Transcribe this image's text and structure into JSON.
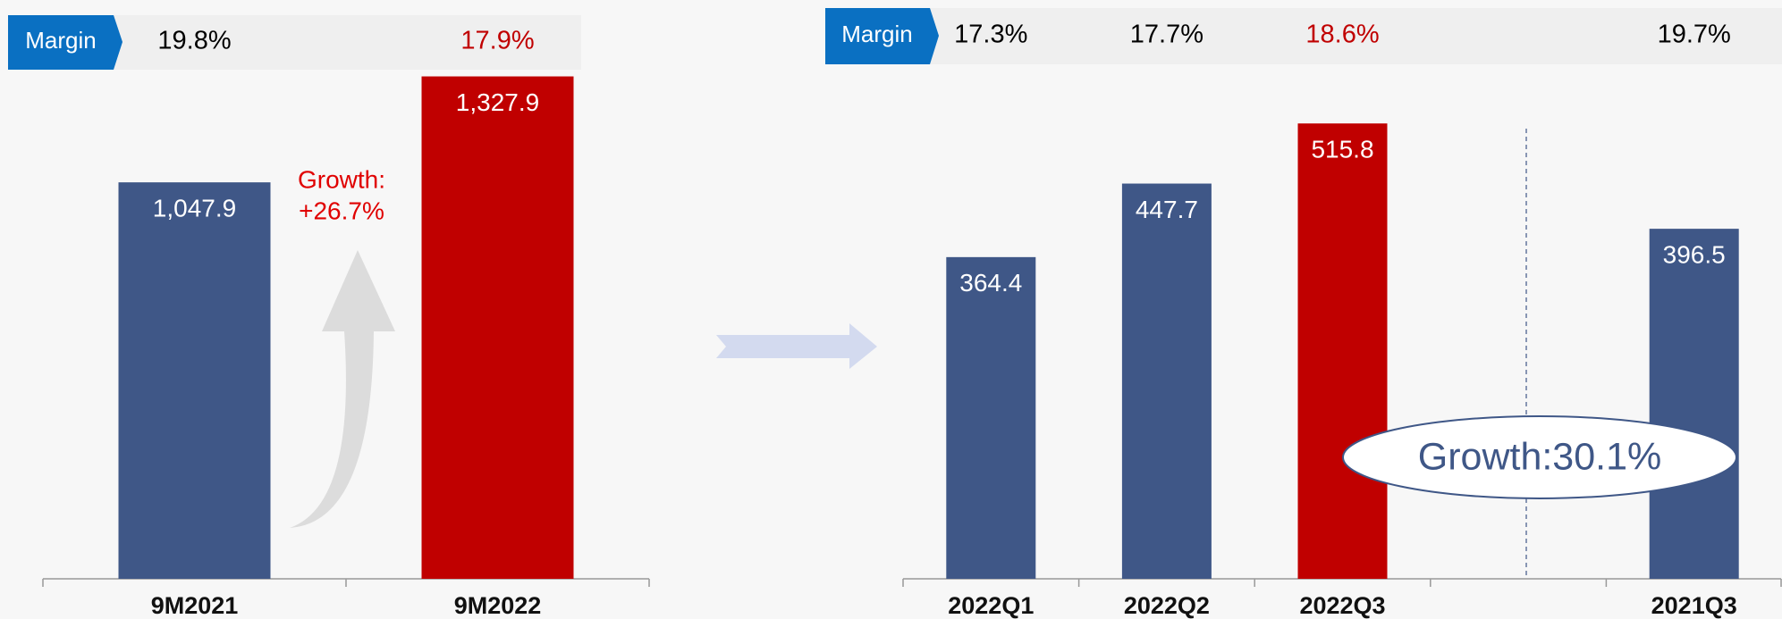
{
  "chart_data": [
    {
      "type": "bar",
      "margin_title": "Margin",
      "categories": [
        "9M2021",
        "9M2022"
      ],
      "values": [
        1047.9,
        1327.9
      ],
      "value_labels": [
        "1,047.9",
        "1,327.9"
      ],
      "colors": [
        "#3f5787",
        "#c00000"
      ],
      "margins": [
        "19.8%",
        "17.9%"
      ],
      "margin_colors": [
        "#000000",
        "#c00000"
      ],
      "annotation": [
        "Growth:",
        "+26.7%"
      ],
      "ylim": [
        0,
        1400
      ]
    },
    {
      "type": "bar",
      "margin_title": "Margin",
      "categories": [
        "2022Q1",
        "2022Q2",
        "2022Q3",
        null,
        "2021Q3"
      ],
      "values": [
        364.4,
        447.7,
        515.8,
        null,
        396.5
      ],
      "value_labels": [
        "364.4",
        "447.7",
        "515.8",
        null,
        "396.5"
      ],
      "colors": [
        "#3f5787",
        "#3f5787",
        "#c00000",
        null,
        "#3f5787"
      ],
      "margins": [
        "17.3%",
        "17.7%",
        "18.6%",
        null,
        "19.7%"
      ],
      "margin_colors": [
        "#000000",
        "#000000",
        "#c00000",
        null,
        "#000000"
      ],
      "annotation": [
        "Growth:30.1%"
      ],
      "ylim": [
        0,
        600
      ]
    }
  ]
}
